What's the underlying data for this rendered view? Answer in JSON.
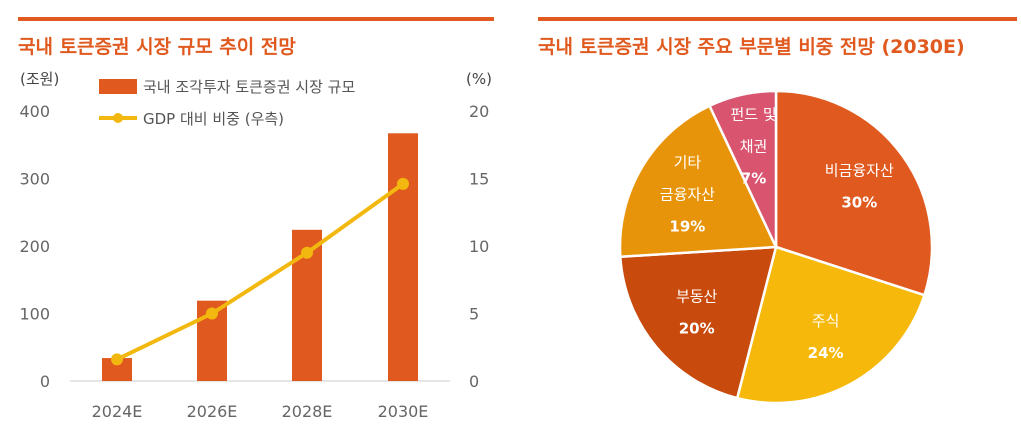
{
  "chart_data": [
    {
      "type": "bar",
      "title": "국내 토큰증권 시장 규모 추이 전망",
      "left_unit": "(조원)",
      "right_unit": "(%)",
      "categories": [
        "2024E",
        "2026E",
        "2028E",
        "2030E"
      ],
      "ylim": [
        0,
        400
      ],
      "y2lim": [
        0,
        20
      ],
      "yticks": [
        "400",
        "300",
        "200",
        "100",
        "0"
      ],
      "y2ticks": [
        "20",
        "15",
        "10",
        "5",
        "0"
      ],
      "series": [
        {
          "name": "국내 조각투자 토큰증권 시장 규모",
          "type": "bar",
          "axis": "left",
          "values": [
            34,
            119,
            224,
            367
          ],
          "color": "#e05a20"
        },
        {
          "name": "GDP 대비 비중 (우측)",
          "type": "line",
          "axis": "right",
          "values": [
            1.6,
            5.0,
            9.5,
            14.6
          ],
          "color": "#f2b80f"
        }
      ],
      "legend": "top-left",
      "grid": false
    },
    {
      "type": "pie",
      "title": "국내 토큰증권 시장 주요 부문별 비중 전망 (2030E)",
      "slices": [
        {
          "lines": [
            "비금융자산"
          ],
          "value": 30,
          "pct": "30%",
          "color": "#e05a20"
        },
        {
          "lines": [
            "주식"
          ],
          "value": 24,
          "pct": "24%",
          "color": "#f5b80b"
        },
        {
          "lines": [
            "부동산"
          ],
          "value": 20,
          "pct": "20%",
          "color": "#c84a0c"
        },
        {
          "lines": [
            "기타",
            "금융자산"
          ],
          "value": 19,
          "pct": "19%",
          "color": "#e8940a"
        },
        {
          "lines": [
            "펀드 및",
            "채권"
          ],
          "value": 7,
          "pct": "7%",
          "color": "#d9546e"
        }
      ]
    }
  ]
}
